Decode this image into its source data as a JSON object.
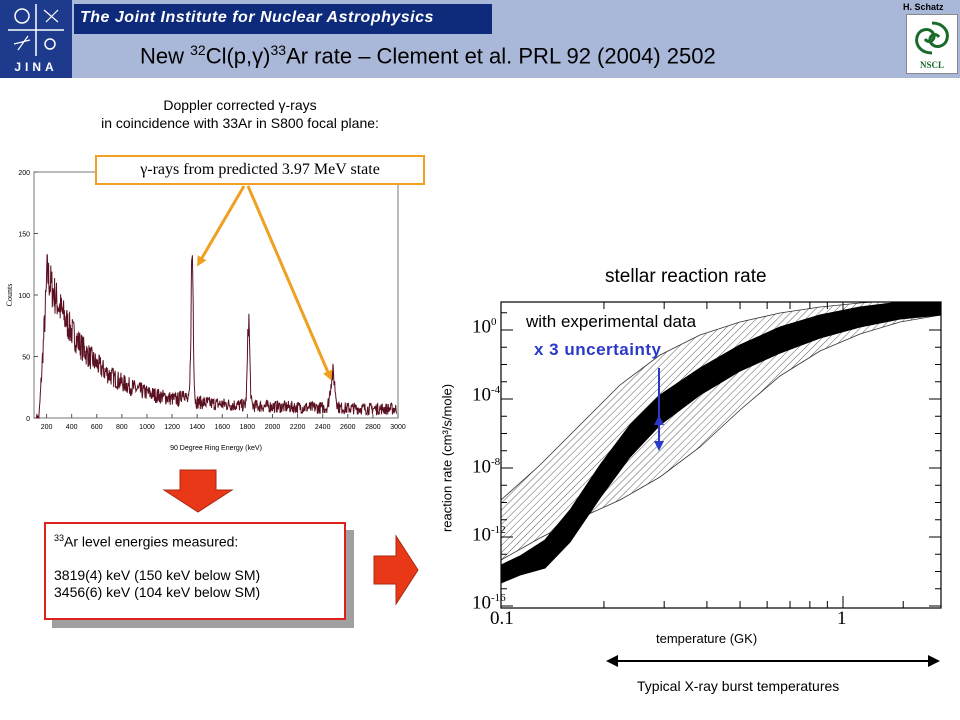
{
  "header": {
    "institute": "The Joint Institute for Nuclear Astrophysics",
    "logo_text": "JINA",
    "author": "H. Schatz",
    "partner_logo_text": "NSCL"
  },
  "title": {
    "prefix": "New ",
    "mass1": "32",
    "reaction": "Cl(p,γ)",
    "mass2": "33",
    "suffix": "Ar rate – Clement et al. PRL 92 (2004) 2502"
  },
  "spectrum": {
    "caption_line1": "Doppler corrected γ-rays",
    "caption_line2": "in coincidence with 33Ar in S800 focal plane:",
    "callout": "γ-rays from predicted 3.97 MeV state",
    "ylabel": "Counts",
    "xlabel": "90 Degree Ring Energy (keV)",
    "xticks": [
      "200",
      "400",
      "600",
      "800",
      "1000",
      "1200",
      "1400",
      "1600",
      "1800",
      "2000",
      "2200",
      "2400",
      "2600",
      "2800",
      "3000"
    ],
    "yticks": [
      "0",
      "50",
      "100",
      "150",
      "200"
    ]
  },
  "levels": {
    "mass": "33",
    "heading": "Ar level energies measured:",
    "line1": "3819(4) keV  (150 keV below SM)",
    "line2": "3456(6) keV  (104 keV below SM)"
  },
  "rate_plot": {
    "title": "stellar reaction rate",
    "ylabel": "reaction rate (cm³/s/mole)",
    "xlabel": "temperature (GK)",
    "exp_label": "with experimental data",
    "uncertainty_label": "x 3 uncertainty",
    "burst_label": "Typical X-ray burst temperatures",
    "ytick_base": "10",
    "ytick_exponents": [
      "0",
      "-4",
      "-8",
      "-12",
      "-16"
    ],
    "xticks": [
      "0.1",
      "1"
    ]
  },
  "colors": {
    "header_bg": "#a9b8d8",
    "institute_bar": "#0e2a7a",
    "spectrum_line": "#5a1020",
    "callout_border": "#f0a020",
    "levels_border": "#e0201a",
    "uncertainty_text": "#2a39c8"
  }
}
